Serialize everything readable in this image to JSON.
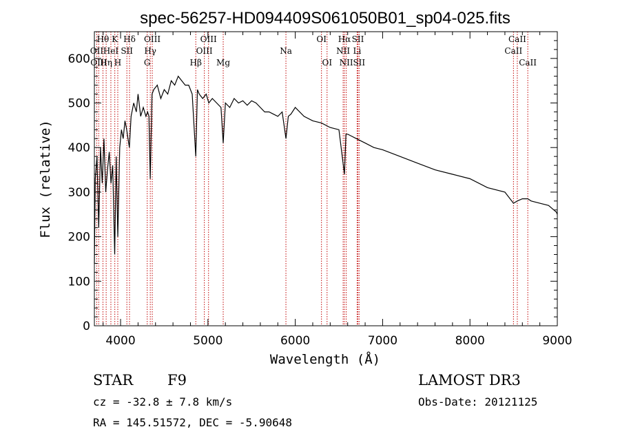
{
  "chart_data": {
    "type": "line",
    "title": "spec-56257-HD094409S061050B01_sp04-025.fits",
    "xlabel": "Wavelength (Å)",
    "ylabel": "Flux (relative)",
    "xlim": [
      3700,
      9000
    ],
    "ylim": [
      0,
      660
    ],
    "xticks": [
      4000,
      5000,
      6000,
      7000,
      8000,
      9000
    ],
    "yticks": [
      0,
      100,
      200,
      300,
      400,
      500,
      600
    ],
    "x": [
      3700,
      3710,
      3730,
      3750,
      3770,
      3790,
      3810,
      3830,
      3850,
      3870,
      3890,
      3910,
      3933,
      3950,
      3968,
      3990,
      4010,
      4030,
      4050,
      4070,
      4101,
      4120,
      4150,
      4180,
      4200,
      4230,
      4260,
      4290,
      4310,
      4325,
      4340,
      4360,
      4380,
      4420,
      4460,
      4500,
      4540,
      4580,
      4620,
      4660,
      4700,
      4740,
      4780,
      4820,
      4861,
      4880,
      4900,
      4940,
      4980,
      5010,
      5050,
      5100,
      5150,
      5175,
      5200,
      5250,
      5300,
      5350,
      5400,
      5450,
      5500,
      5550,
      5600,
      5650,
      5700,
      5750,
      5800,
      5850,
      5893,
      5920,
      5950,
      6000,
      6100,
      6200,
      6300,
      6400,
      6500,
      6563,
      6580,
      6600,
      6700,
      6800,
      6900,
      7000,
      7200,
      7400,
      7600,
      7800,
      8000,
      8200,
      8400,
      8498,
      8542,
      8600,
      8662,
      8700,
      8800,
      8900,
      8960,
      8990,
      9000
    ],
    "y": [
      140,
      330,
      380,
      220,
      400,
      320,
      420,
      300,
      350,
      390,
      320,
      360,
      160,
      380,
      200,
      400,
      440,
      420,
      460,
      440,
      400,
      470,
      500,
      480,
      520,
      470,
      490,
      470,
      480,
      470,
      330,
      520,
      530,
      540,
      510,
      530,
      520,
      550,
      540,
      560,
      550,
      540,
      540,
      520,
      380,
      530,
      520,
      510,
      520,
      500,
      510,
      500,
      490,
      410,
      500,
      490,
      510,
      500,
      505,
      495,
      505,
      500,
      490,
      480,
      480,
      475,
      470,
      480,
      420,
      470,
      475,
      490,
      470,
      460,
      455,
      445,
      440,
      340,
      430,
      430,
      420,
      410,
      400,
      395,
      380,
      365,
      350,
      340,
      330,
      310,
      300,
      275,
      280,
      285,
      285,
      280,
      275,
      270,
      260,
      255,
      250
    ],
    "lines": [
      {
        "label": "Hθ",
        "wavelength": 3798,
        "row": 1
      },
      {
        "label": "OII",
        "wavelength": 3727,
        "row": 2
      },
      {
        "label": "OIII",
        "wavelength": 3750,
        "row": 3
      },
      {
        "label": "Hη",
        "wavelength": 3835,
        "row": 3
      },
      {
        "label": "HeI",
        "wavelength": 3889,
        "row": 2
      },
      {
        "label": "K",
        "wavelength": 3934,
        "row": 1
      },
      {
        "label": "SII",
        "wavelength": 4072,
        "row": 2
      },
      {
        "label": "H",
        "wavelength": 3968,
        "row": 3
      },
      {
        "label": "Hδ",
        "wavelength": 4102,
        "row": 1
      },
      {
        "label": "OIII",
        "wavelength": 4363,
        "row": 1
      },
      {
        "label": "Hγ",
        "wavelength": 4340,
        "row": 2
      },
      {
        "label": "G",
        "wavelength": 4305,
        "row": 3
      },
      {
        "label": "OIII",
        "wavelength": 5007,
        "row": 1
      },
      {
        "label": "OIII",
        "wavelength": 4959,
        "row": 2
      },
      {
        "label": "Hβ",
        "wavelength": 4861,
        "row": 3
      },
      {
        "label": "Mg",
        "wavelength": 5175,
        "row": 3
      },
      {
        "label": "Na",
        "wavelength": 5893,
        "row": 2
      },
      {
        "label": "OI",
        "wavelength": 6300,
        "row": 1
      },
      {
        "label": "OI",
        "wavelength": 6364,
        "row": 3
      },
      {
        "label": "Hα",
        "wavelength": 6563,
        "row": 1
      },
      {
        "label": "NII",
        "wavelength": 6548,
        "row": 2
      },
      {
        "label": "NII",
        "wavelength": 6584,
        "row": 3
      },
      {
        "label": "SII",
        "wavelength": 6717,
        "row": 1
      },
      {
        "label": "Li",
        "wavelength": 6708,
        "row": 2
      },
      {
        "label": "SII",
        "wavelength": 6731,
        "row": 3
      },
      {
        "label": "CaII",
        "wavelength": 8542,
        "row": 1
      },
      {
        "label": "CaII",
        "wavelength": 8498,
        "row": 2
      },
      {
        "label": "CaII",
        "wavelength": 8662,
        "row": 3
      }
    ],
    "colors": {
      "spectrum": "#000000",
      "line_markers": "#c00000",
      "axes": "#000000"
    }
  },
  "info": {
    "class_label": "STAR",
    "subclass": "F9",
    "survey": "LAMOST DR3",
    "cz": "cz = -32.8 ± 7.8 km/s",
    "obs_date": "Obs-Date: 20121125",
    "coords": "RA = 145.51572, DEC =  -5.90648"
  }
}
